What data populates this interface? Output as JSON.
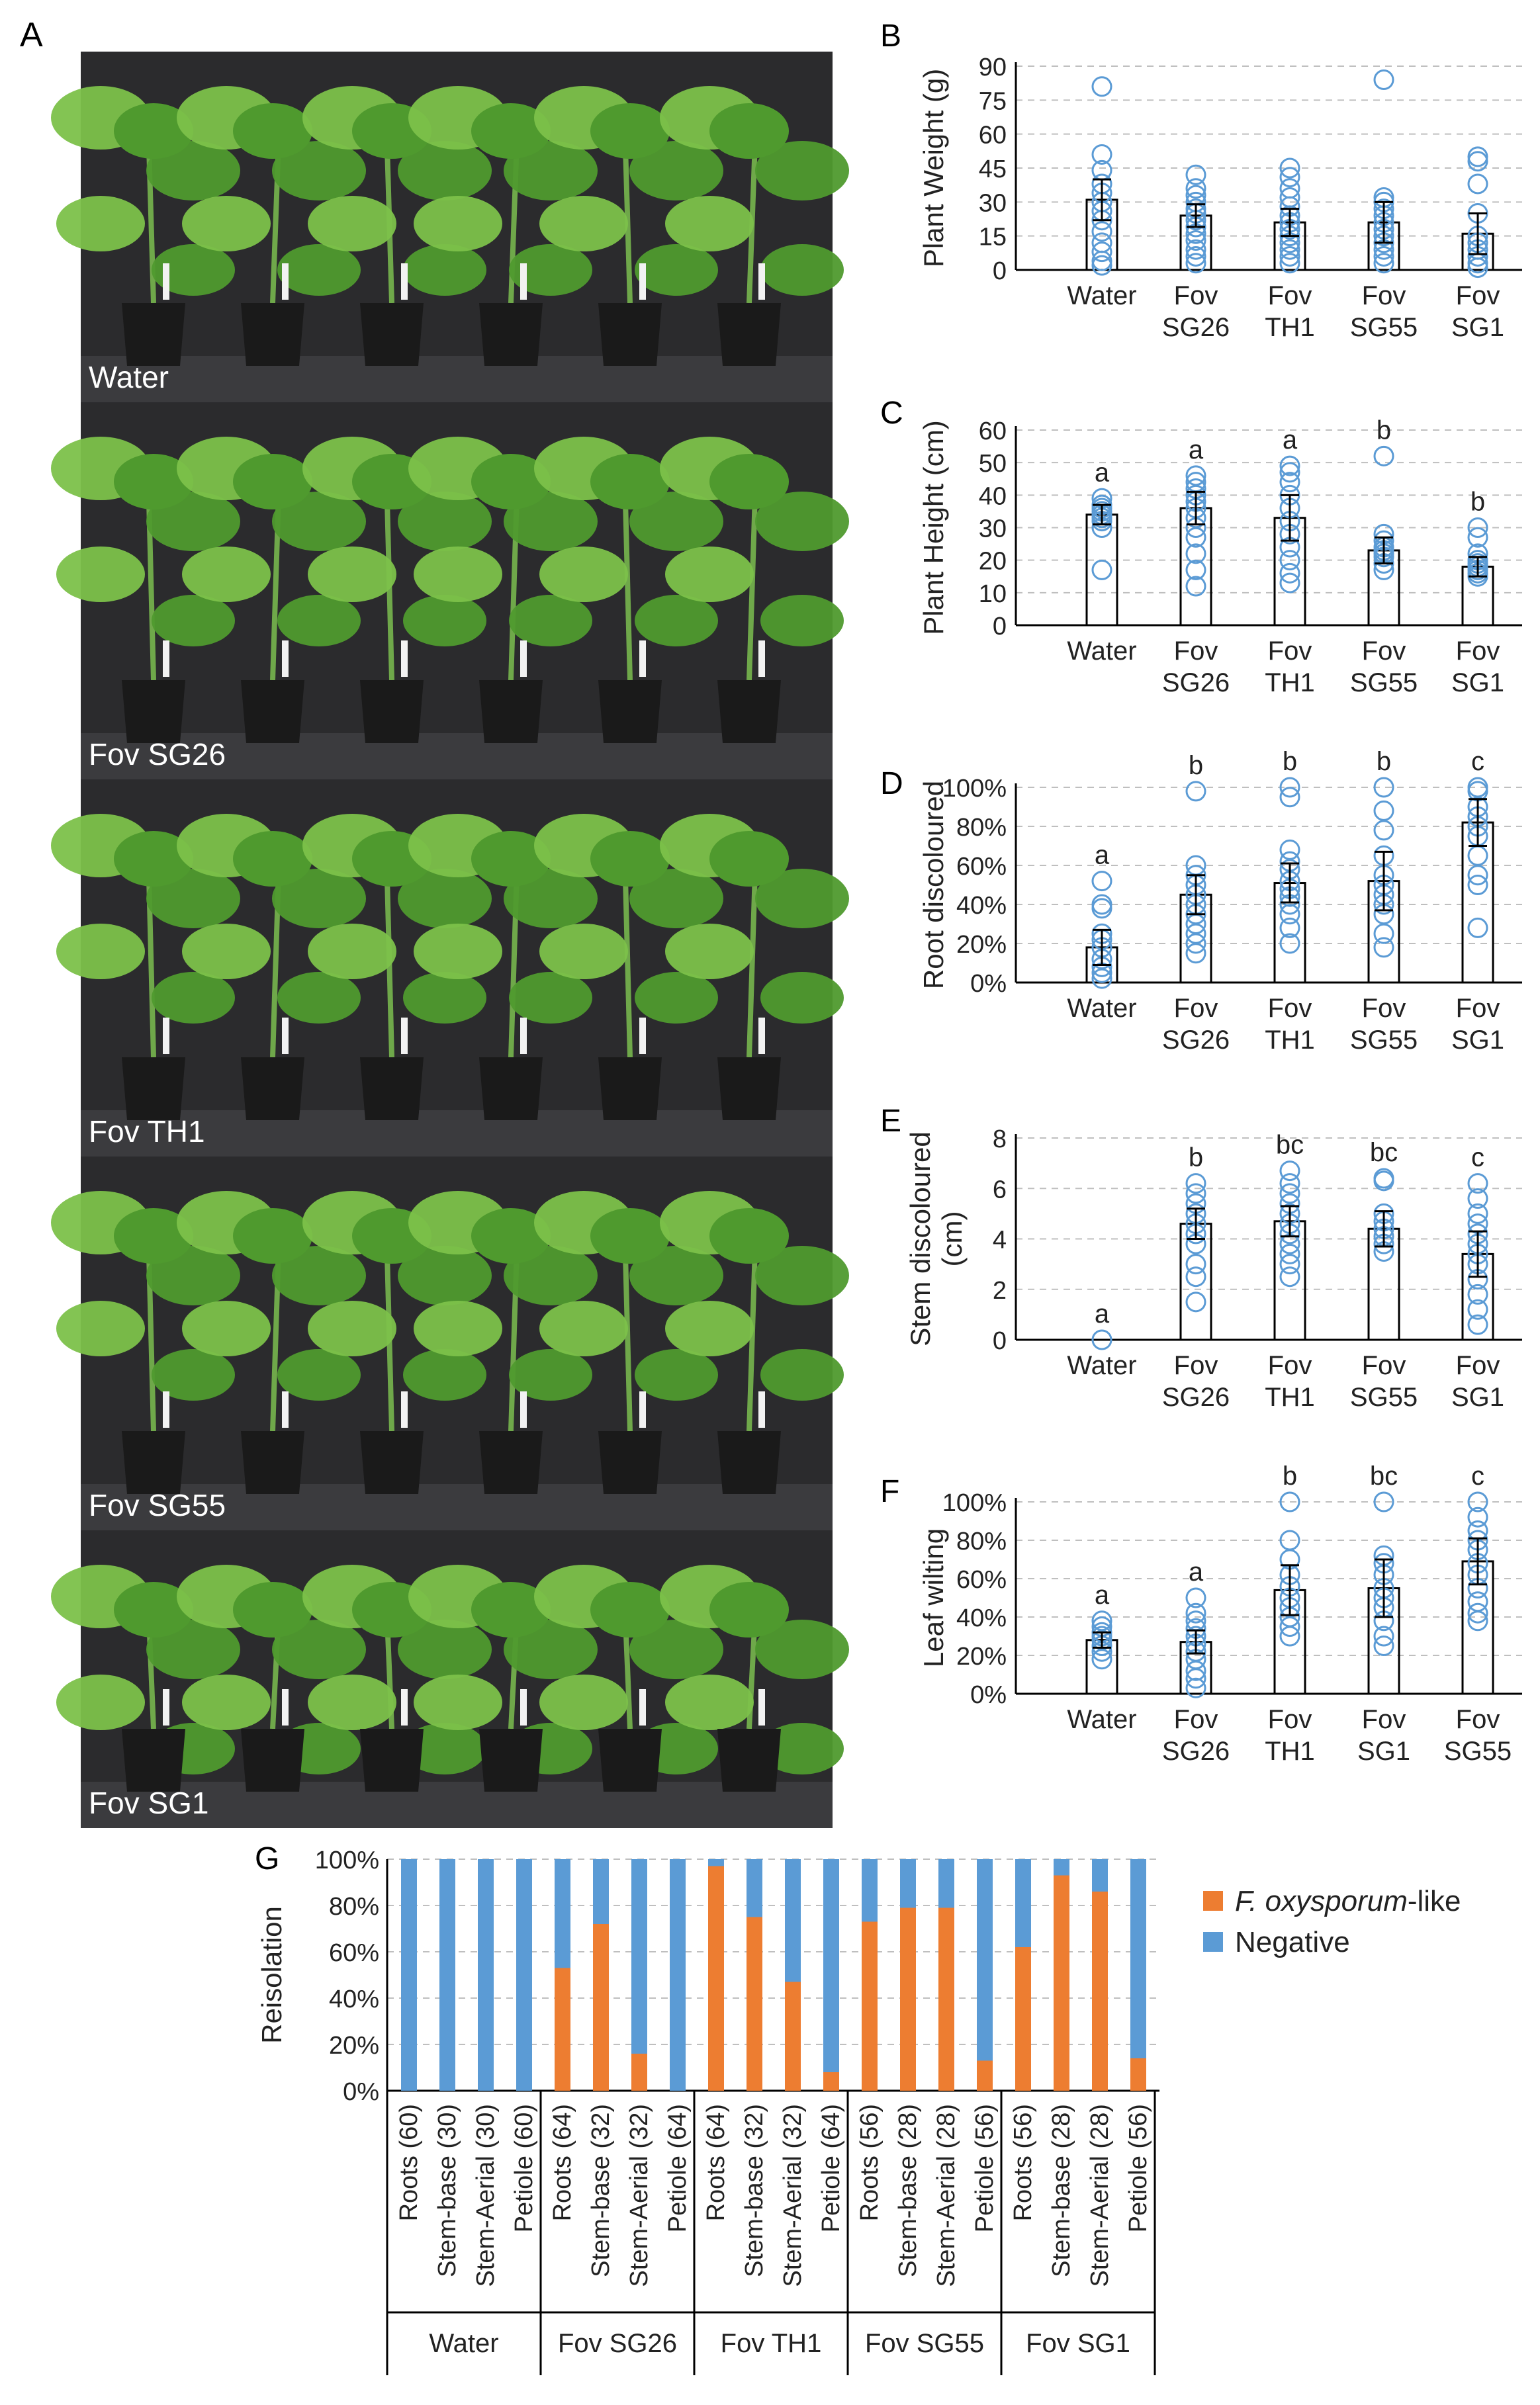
{
  "figure": {
    "panel_letters": [
      "A",
      "B",
      "C",
      "D",
      "E",
      "F",
      "G"
    ],
    "photo_labels": [
      "Water",
      "Fov SG26",
      "Fov TH1",
      "Fov SG55",
      "Fov SG1"
    ],
    "photo_colors": {
      "backdrop": "#2b2b2d",
      "leaf": "#4f9a2e",
      "leaf_light": "#7cc14a",
      "pot": "#1a1a1a",
      "label": "#ffffff"
    },
    "bar_style": {
      "bar_stroke": "#000000",
      "point_color": "#5b9bd5",
      "grid_color": "#bfbfbf"
    }
  },
  "chart_data": [
    {
      "panel": "B",
      "type": "bar",
      "ylabel": "Plant Weight (g)",
      "ylim": [
        0,
        90
      ],
      "yticks": [
        "0",
        "15",
        "30",
        "45",
        "60",
        "75",
        "90"
      ],
      "categories": [
        "Water",
        "Fov SG26",
        "Fov TH1",
        "Fov SG55",
        "Fov SG1"
      ],
      "values": [
        31,
        24,
        21,
        21,
        16
      ],
      "errors": [
        9,
        5,
        6,
        9,
        9
      ],
      "letters": [
        "",
        "",
        "",
        "",
        ""
      ],
      "points": [
        [
          81,
          51,
          44,
          38,
          34,
          30,
          26,
          22,
          17,
          12,
          8,
          4,
          2
        ],
        [
          42,
          36,
          33,
          30,
          27,
          25,
          22,
          19,
          16,
          13,
          9,
          6,
          3
        ],
        [
          45,
          41,
          36,
          32,
          28,
          24,
          21,
          18,
          15,
          12,
          9,
          6,
          3
        ],
        [
          84,
          32,
          30,
          27,
          24,
          21,
          18,
          15,
          12,
          9,
          6,
          3
        ],
        [
          50,
          48,
          38,
          25,
          15,
          12,
          9,
          6,
          3,
          1
        ]
      ],
      "grid": true
    },
    {
      "panel": "C",
      "type": "bar",
      "ylabel": "Plant Height (cm)",
      "ylim": [
        0,
        60
      ],
      "yticks": [
        "0",
        "10",
        "20",
        "30",
        "40",
        "50",
        "60"
      ],
      "categories": [
        "Water",
        "Fov SG26",
        "Fov TH1",
        "Fov SG55",
        "Fov SG1"
      ],
      "values": [
        34,
        36,
        33,
        23,
        18
      ],
      "errors": [
        3,
        5,
        7,
        4,
        3
      ],
      "letters": [
        "a",
        "a",
        "a",
        "b",
        "b"
      ],
      "points": [
        [
          39,
          37,
          36,
          35,
          34,
          33,
          32,
          30,
          17
        ],
        [
          46,
          44,
          42,
          40,
          38,
          36,
          33,
          30,
          27,
          22,
          17,
          12
        ],
        [
          49,
          47,
          44,
          40,
          36,
          32,
          28,
          24,
          20,
          16,
          13
        ],
        [
          52,
          28,
          26,
          24,
          23,
          22,
          21,
          19,
          17
        ],
        [
          30,
          27,
          22,
          20,
          19,
          18,
          17,
          16,
          15
        ]
      ],
      "grid": true
    },
    {
      "panel": "D",
      "type": "bar",
      "ylabel": "Root discoloured",
      "ylim": [
        0,
        100
      ],
      "yticks": [
        "0%",
        "20%",
        "40%",
        "60%",
        "80%",
        "100%"
      ],
      "categories": [
        "Water",
        "Fov SG26",
        "Fov TH1",
        "Fov SG55",
        "Fov SG1"
      ],
      "values": [
        18,
        45,
        51,
        52,
        82
      ],
      "errors": [
        9,
        10,
        10,
        15,
        12
      ],
      "letters": [
        "a",
        "b",
        "b",
        "b",
        "c"
      ],
      "points": [
        [
          52,
          40,
          38,
          25,
          22,
          18,
          12,
          8,
          5,
          2
        ],
        [
          98,
          60,
          55,
          50,
          45,
          40,
          35,
          30,
          25,
          20,
          15
        ],
        [
          100,
          95,
          68,
          62,
          58,
          52,
          48,
          44,
          40,
          35,
          28,
          20
        ],
        [
          100,
          88,
          78,
          65,
          55,
          50,
          45,
          40,
          35,
          25,
          18
        ],
        [
          100,
          98,
          90,
          85,
          80,
          75,
          65,
          55,
          50,
          28
        ]
      ],
      "grid": true
    },
    {
      "panel": "E",
      "type": "bar",
      "ylabel": "Stem discoloured (cm)",
      "ylim": [
        0,
        8
      ],
      "yticks": [
        "0",
        "2",
        "4",
        "6",
        "8"
      ],
      "categories": [
        "Water",
        "Fov SG26",
        "Fov TH1",
        "Fov SG55",
        "Fov SG1"
      ],
      "values": [
        0,
        4.6,
        4.7,
        4.4,
        3.4
      ],
      "errors": [
        0,
        0.6,
        0.6,
        0.7,
        0.9
      ],
      "letters": [
        "a",
        "b",
        "bc",
        "bc",
        "c"
      ],
      "points": [
        [
          0
        ],
        [
          6.2,
          5.8,
          5.4,
          5.0,
          4.6,
          4.2,
          3.8,
          3.0,
          2.5,
          1.5
        ],
        [
          6.7,
          6.2,
          5.8,
          5.4,
          5.0,
          4.6,
          4.2,
          3.8,
          3.4,
          3.0,
          2.5
        ],
        [
          6.4,
          6.3,
          5.0,
          4.7,
          4.4,
          4.1,
          3.8,
          3.5
        ],
        [
          6.2,
          5.6,
          5.0,
          4.6,
          4.2,
          3.8,
          3.4,
          3.0,
          2.4,
          1.8,
          1.2,
          0.6
        ]
      ],
      "grid": true
    },
    {
      "panel": "F",
      "type": "bar",
      "ylabel": "Leaf wilting",
      "ylim": [
        0,
        100
      ],
      "yticks": [
        "0%",
        "20%",
        "40%",
        "60%",
        "80%",
        "100%"
      ],
      "categories": [
        "Water",
        "Fov SG26",
        "Fov TH1",
        "Fov SG1",
        "Fov SG55"
      ],
      "values": [
        28,
        27,
        54,
        55,
        69
      ],
      "errors": [
        4,
        6,
        13,
        15,
        12
      ],
      "letters": [
        "a",
        "a",
        "b",
        "bc",
        "c"
      ],
      "points": [
        [
          38,
          35,
          32,
          30,
          28,
          25,
          22,
          18
        ],
        [
          50,
          42,
          38,
          34,
          30,
          26,
          22,
          18,
          12,
          8,
          3
        ],
        [
          100,
          80,
          70,
          62,
          56,
          50,
          45,
          40,
          35,
          30
        ],
        [
          100,
          72,
          68,
          62,
          55,
          50,
          45,
          38,
          30,
          25
        ],
        [
          100,
          92,
          85,
          80,
          75,
          68,
          62,
          55,
          48,
          42,
          38
        ]
      ],
      "grid": true
    },
    {
      "panel": "G",
      "type": "bar",
      "stacked": true,
      "ylabel": "Reisolation",
      "ylim": [
        0,
        100
      ],
      "yticks": [
        "0%",
        "20%",
        "40%",
        "60%",
        "80%",
        "100%"
      ],
      "categories": [
        "Roots (60)",
        "Stem-base (30)",
        "Stem-Aerial (30)",
        "Petiole (60)",
        "Roots (64)",
        "Stem-base (32)",
        "Stem-Aerial (32)",
        "Petiole (64)",
        "Roots (64)",
        "Stem-base (32)",
        "Stem-Aerial (32)",
        "Petiole (64)",
        "Roots (56)",
        "Stem-base (28)",
        "Stem-Aerial (28)",
        "Petiole (56)",
        "Roots (56)",
        "Stem-base (28)",
        "Stem-Aerial (28)",
        "Petiole (56)"
      ],
      "groups": [
        "Water",
        "Fov SG26",
        "Fov TH1",
        "Fov SG55",
        "Fov SG1"
      ],
      "series": [
        {
          "name": "F. oxysporum-like",
          "name_italic": "F. oxysporum",
          "name_suffix": "-like",
          "color": "#ed7d31",
          "values": [
            0,
            0,
            0,
            0,
            53,
            72,
            16,
            0,
            97,
            75,
            47,
            8,
            73,
            79,
            79,
            13,
            62,
            93,
            86,
            14
          ]
        },
        {
          "name": "Negative",
          "color": "#5b9bd5",
          "values": [
            100,
            100,
            100,
            100,
            47,
            28,
            84,
            100,
            3,
            25,
            53,
            92,
            27,
            21,
            21,
            87,
            38,
            7,
            14,
            86
          ]
        }
      ],
      "legend_position": "right",
      "grid": true
    }
  ]
}
